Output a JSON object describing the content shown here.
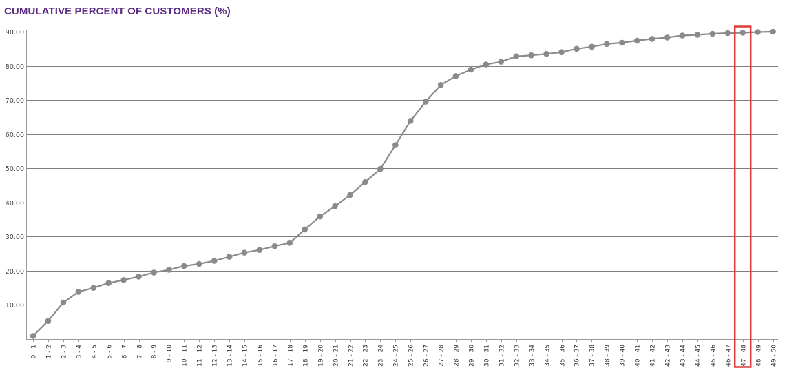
{
  "chart_data": {
    "type": "line",
    "title": "CUMULATIVE PERCENT OF CUSTOMERS (%)",
    "xlabel": "",
    "ylabel": "",
    "ylim": [
      0,
      90
    ],
    "yticks": [
      "10.00",
      "20.00",
      "30.00",
      "40.00",
      "50.00",
      "60.00",
      "70.00",
      "80.00",
      "90.00"
    ],
    "categories": [
      "0 - 1",
      "1 - 2",
      "2 - 3",
      "3 - 4",
      "4 - 5",
      "5 - 6",
      "6 - 7",
      "7 - 8",
      "8 - 9",
      "9 - 10",
      "10 - 11",
      "11 - 12",
      "12 - 13",
      "13 - 14",
      "14 - 15",
      "15 - 16",
      "16 - 17",
      "17 - 18",
      "18 - 19",
      "19 - 20",
      "20 - 21",
      "21 - 22",
      "22 - 23",
      "23 - 24",
      "24 - 25",
      "25 - 26",
      "26 - 27",
      "27 - 28",
      "28 - 29",
      "29 - 30",
      "30 - 31",
      "31 - 32",
      "32 - 33",
      "33 - 34",
      "34 - 35",
      "35 - 36",
      "36 - 37",
      "37 - 38",
      "38 - 39",
      "39 - 40",
      "40 - 41",
      "41 - 42",
      "42 - 43",
      "43 - 44",
      "44 - 45",
      "45 - 46",
      "46 - 47",
      "47 - 48",
      "48 - 49",
      "49 - 50"
    ],
    "series": [
      {
        "values": [
          0.9,
          5.3,
          10.7,
          13.8,
          15.0,
          16.4,
          17.3,
          18.3,
          19.5,
          20.3,
          21.4,
          22.0,
          22.9,
          24.1,
          25.3,
          26.1,
          27.2,
          28.2,
          32.1,
          35.9,
          38.9,
          42.2,
          46.0,
          49.8,
          56.8,
          63.9,
          69.5,
          74.4,
          77.0,
          78.9,
          80.4,
          81.2,
          82.8,
          83.1,
          83.5,
          84.0,
          85.0,
          85.6,
          86.4,
          86.8,
          87.4,
          87.9,
          88.3,
          88.9,
          89.1,
          89.4,
          89.6,
          89.7,
          89.9,
          90.0
        ]
      }
    ],
    "grid": "horizontal",
    "highlight_category": "47 - 48",
    "colors": {
      "title": "#5b2c83",
      "line": "#8a8a8a",
      "marker": "#8a8a8a",
      "grid": "#7f7f7f",
      "highlight": "#e03a3a"
    }
  }
}
